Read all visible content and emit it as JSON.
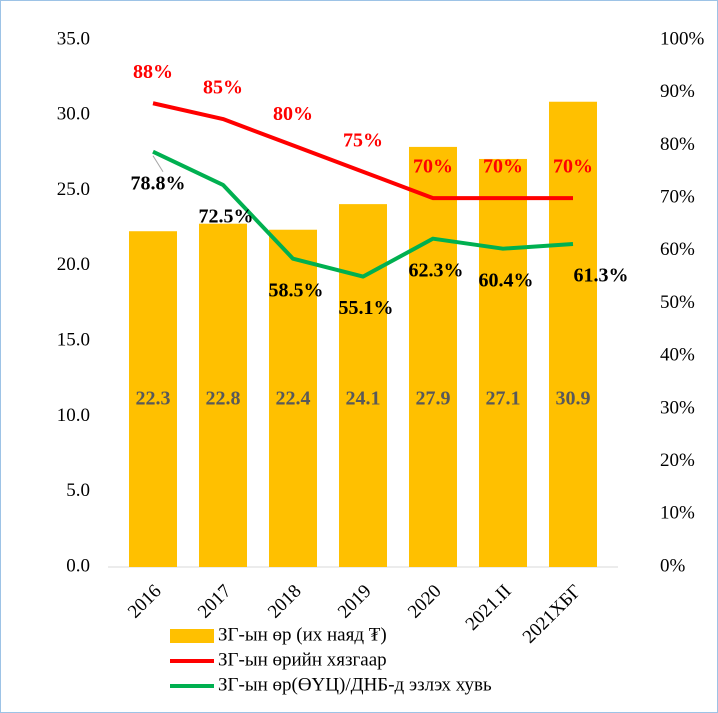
{
  "chart_data": {
    "type": "bar_line",
    "categories": [
      "2016",
      "2017",
      "2018",
      "2019",
      "2020",
      "2021.II",
      "2021ХБГ"
    ],
    "series": [
      {
        "name": "ЗГ-ын өр (их наяд ₮)",
        "type": "bar",
        "color": "#ffc000",
        "axis": "y",
        "label_color": "#595959",
        "values": [
          22.3,
          22.8,
          22.4,
          24.1,
          27.9,
          27.1,
          30.9
        ]
      },
      {
        "name": "ЗГ-ын өрийн хязгаар",
        "type": "line",
        "color": "#ff0000",
        "axis": "y2",
        "label_color": "#ff0000",
        "values": [
          88,
          85,
          80,
          75,
          70,
          70,
          70
        ],
        "value_labels": [
          "88%",
          "85%",
          "80%",
          "75%",
          "70%",
          "70%",
          "70%"
        ]
      },
      {
        "name": "ЗГ-ын өр(ӨҮЦ)/ДНБ-д эзлэх хувь",
        "type": "line",
        "color": "#00b050",
        "axis": "y2",
        "label_color": "#000000",
        "values": [
          78.8,
          72.5,
          58.5,
          55.1,
          62.3,
          60.4,
          61.3
        ],
        "value_labels": [
          "78.8%",
          "72.5%",
          "58.5%",
          "55.1%",
          "62.3%",
          "60.4%",
          "61.3%"
        ]
      }
    ],
    "ylim": [
      0,
      35
    ],
    "yticks": [
      {
        "value": 0,
        "label": "0.0"
      },
      {
        "value": 5,
        "label": "5.0"
      },
      {
        "value": 10,
        "label": "10.0"
      },
      {
        "value": 15,
        "label": "15.0"
      },
      {
        "value": 20,
        "label": "20.0"
      },
      {
        "value": 25,
        "label": "25.0"
      },
      {
        "value": 30,
        "label": "30.0"
      },
      {
        "value": 35,
        "label": "35.0"
      }
    ],
    "y2lim": [
      0,
      100
    ],
    "y2ticks": [
      {
        "value": 0,
        "label": "0%"
      },
      {
        "value": 10,
        "label": "10%"
      },
      {
        "value": 20,
        "label": "20%"
      },
      {
        "value": 30,
        "label": "30%"
      },
      {
        "value": 40,
        "label": "40%"
      },
      {
        "value": 50,
        "label": "50%"
      },
      {
        "value": 60,
        "label": "60%"
      },
      {
        "value": 70,
        "label": "70%"
      },
      {
        "value": 80,
        "label": "80%"
      },
      {
        "value": 90,
        "label": "90%"
      },
      {
        "value": 100,
        "label": "100%"
      }
    ],
    "grid": false,
    "legend": "bottom"
  }
}
